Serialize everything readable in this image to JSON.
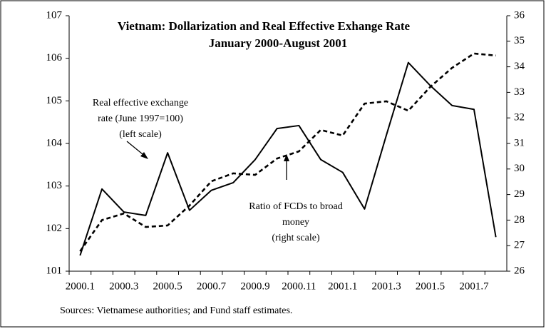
{
  "chart_data": {
    "type": "line",
    "title": "Vietnam:  Dollarization and Real Effective Exhange Rate",
    "subtitle": "January 2000-August 2001",
    "categories": [
      "2000.1",
      null,
      "2000.3",
      null,
      "2000.5",
      null,
      "2000.7",
      null,
      "2000.9",
      null,
      "2000.11",
      null,
      "2001.1",
      null,
      "2001.3",
      null,
      "2001.5",
      null,
      "2001.7",
      null
    ],
    "series": [
      {
        "color": "#000000",
        "style": "solid",
        "values": [
          101.37,
          102.93,
          102.39,
          102.31,
          103.78,
          102.43,
          102.9,
          103.08,
          103.62,
          104.35,
          104.42,
          103.62,
          103.32,
          102.46,
          104.2,
          105.9,
          105.36,
          104.89,
          104.8,
          101.8
        ]
      },
      {
        "color": "#000000",
        "style": "dashed",
        "axis": "y2",
        "values": [
          26.78,
          28.0,
          28.26,
          27.73,
          27.79,
          28.57,
          29.52,
          29.83,
          29.77,
          30.41,
          30.69,
          31.53,
          31.31,
          32.56,
          32.65,
          32.28,
          33.21,
          33.96,
          34.52,
          34.44
        ]
      }
    ],
    "ylim": [
      101,
      107
    ],
    "yticks": [
      101,
      102,
      103,
      104,
      105,
      106,
      107
    ],
    "y2lim": [
      26,
      36
    ],
    "y2ticks": [
      26,
      27,
      28,
      29,
      30,
      31,
      32,
      33,
      34,
      35,
      36
    ],
    "annotations": [
      [
        "Real effective exchange",
        "rate (June 1997=100)",
        "(left scale)"
      ],
      [
        "Ratio of FCDs to broad",
        "money",
        "(right scale)"
      ]
    ],
    "source": "Sources: Vietnamese authorities; and Fund staff estimates."
  }
}
